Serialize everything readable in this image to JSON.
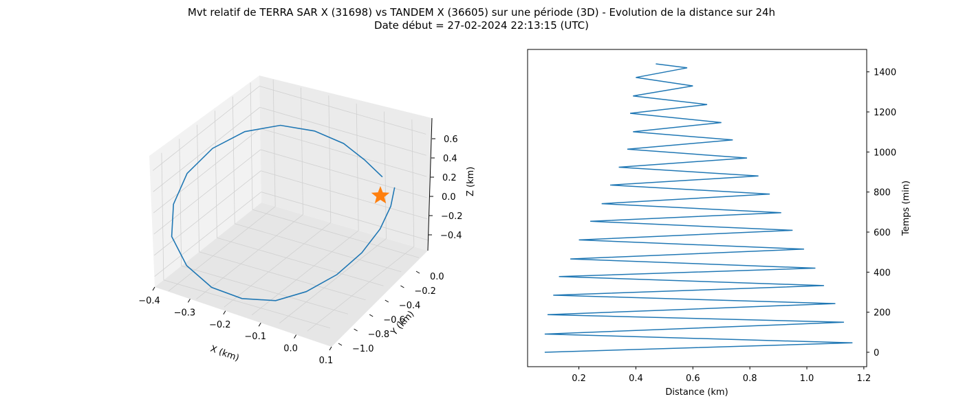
{
  "figure": {
    "title_line1": "Mvt relatif de TERRA SAR X (31698) vs TANDEM X (36605) sur une période (3D) - Evolution de la distance sur 24h",
    "title_line2": "Date début = 27-02-2024 22:13:15 (UTC)"
  },
  "chart_data": [
    {
      "type": "line3d",
      "xlabel": "X (km)",
      "ylabel": "Y (km)",
      "zlabel": "Z (km)",
      "xticks": [
        "−0.4",
        "−0.3",
        "−0.2",
        "−0.1",
        "0.0",
        "0.1"
      ],
      "yticks": [
        "0.0",
        "−0.2",
        "−0.4",
        "−0.6",
        "−0.8",
        "−1.0"
      ],
      "zticks": [
        "0.6",
        "0.4",
        "0.2",
        "0.0",
        "−0.2",
        "−0.4"
      ],
      "xlim": [
        -0.4,
        0.1
      ],
      "ylim": [
        -1.1,
        0.1
      ],
      "zlim": [
        -0.5,
        0.7
      ],
      "grid": true,
      "line_color": "#1f77b4",
      "marker": {
        "symbol": "star",
        "color": "#ff7f0e",
        "x": 0,
        "y": 0,
        "z": 0
      },
      "trajectory_note": "closed relative orbit loop",
      "x": [
        -0.02,
        -0.06,
        -0.1,
        -0.16,
        -0.23,
        -0.3,
        -0.36,
        -0.4,
        -0.41,
        -0.39,
        -0.33,
        -0.25,
        -0.17,
        -0.09,
        -0.03,
        0.02,
        0.05,
        0.06,
        0.05,
        0.03
      ],
      "y": [
        0.05,
        0.0,
        -0.08,
        -0.18,
        -0.3,
        -0.44,
        -0.58,
        -0.72,
        -0.84,
        -0.94,
        -1.0,
        -1.02,
        -0.98,
        -0.9,
        -0.78,
        -0.62,
        -0.45,
        -0.28,
        -0.12,
        0.0
      ],
      "z": [
        0.12,
        0.28,
        0.45,
        0.58,
        0.65,
        0.62,
        0.5,
        0.32,
        0.1,
        -0.12,
        -0.3,
        -0.42,
        -0.48,
        -0.48,
        -0.42,
        -0.32,
        -0.2,
        -0.08,
        0.02,
        0.1
      ]
    },
    {
      "type": "line",
      "xlabel": "Distance (km)",
      "ylabel": "Temps (min)",
      "xticks": [
        "0.2",
        "0.4",
        "0.6",
        "0.8",
        "1.0",
        "1.2"
      ],
      "yticks": [
        "0",
        "200",
        "400",
        "600",
        "800",
        "1000",
        "1200",
        "1400"
      ],
      "xlim": [
        0.02,
        1.21
      ],
      "ylim": [
        -72,
        1512
      ],
      "grid": false,
      "line_color": "#1f77b4",
      "x_axis": "distance",
      "y_axis": "time",
      "series": [
        {
          "distance": [
            0.08,
            1.16,
            0.08,
            1.13,
            0.09,
            1.1,
            0.11,
            1.06,
            0.13,
            1.03,
            0.17,
            0.99,
            0.2,
            0.95,
            0.24,
            0.91,
            0.28,
            0.87,
            0.31,
            0.83,
            0.34,
            0.79,
            0.37,
            0.74,
            0.39,
            0.7,
            0.38,
            0.65,
            0.39,
            0.6,
            0.4,
            0.58,
            0.47
          ],
          "time": [
            0,
            47,
            91,
            150,
            188,
            243,
            285,
            333,
            378,
            420,
            466,
            515,
            561,
            609,
            654,
            697,
            742,
            790,
            835,
            880,
            924,
            970,
            1014,
            1060,
            1101,
            1147,
            1193,
            1237,
            1280,
            1330,
            1372,
            1420,
            1440
          ]
        }
      ]
    }
  ]
}
